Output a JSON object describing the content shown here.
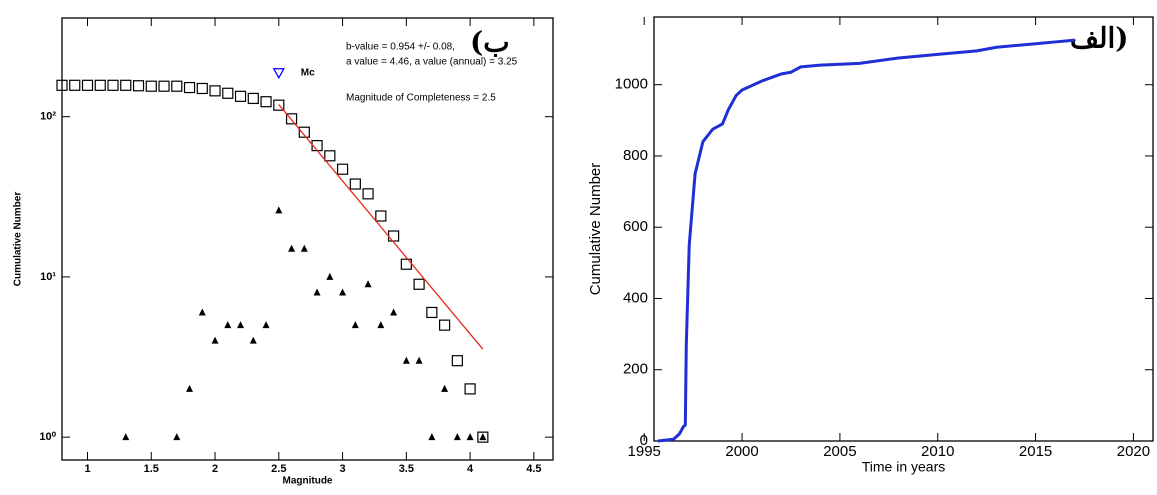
{
  "chart_data": [
    {
      "type": "scatter",
      "yscale": "log",
      "xlabel": "Magnitude",
      "ylabel": "Cumulative Number",
      "panel_label": "(ب",
      "annotations": [
        "b-value = 0.954 +/- 0.08,",
        "a value = 4.46, a value (annual) = 3.25",
        "Magnitude of Completeness = 2.5"
      ],
      "mc_marker": {
        "label": "Mc",
        "x": 2.5,
        "y": 188,
        "color": "#0000ff"
      },
      "xlim": [
        0.8,
        4.65
      ],
      "ylim": [
        0.72,
        413
      ],
      "xticks": [
        1,
        1.5,
        2,
        2.5,
        3,
        3.5,
        4,
        4.5
      ],
      "yticks": [
        {
          "value": 1,
          "label": "10⁰"
        },
        {
          "value": 10,
          "label": "10¹"
        },
        {
          "value": 100,
          "label": "10²"
        }
      ],
      "series": [
        {
          "marker": "square",
          "color": "#000000",
          "x": [
            0.8,
            0.9,
            1.0,
            1.1,
            1.2,
            1.3,
            1.4,
            1.5,
            1.6,
            1.7,
            1.8,
            1.9,
            2.0,
            2.1,
            2.2,
            2.3,
            2.4,
            2.5,
            2.6,
            2.7,
            2.8,
            2.9,
            3.0,
            3.1,
            3.2,
            3.3,
            3.4,
            3.5,
            3.6,
            3.7,
            3.8,
            3.9,
            4.0,
            4.1
          ],
          "values": [
            157,
            157,
            157,
            157,
            157,
            157,
            156,
            155,
            155,
            155,
            152,
            150,
            145,
            140,
            134,
            130,
            124,
            118,
            97,
            80,
            66,
            57,
            47,
            38,
            33,
            24,
            18,
            12,
            9,
            6,
            5,
            3,
            2,
            1
          ]
        },
        {
          "marker": "triangle",
          "color": "#000000",
          "x": [
            1.3,
            1.7,
            1.8,
            1.9,
            2.0,
            2.1,
            2.2,
            2.3,
            2.4,
            2.5,
            2.6,
            2.7,
            2.8,
            2.9,
            3.0,
            3.1,
            3.2,
            3.3,
            3.4,
            3.5,
            3.6,
            3.7,
            3.8,
            3.9,
            4.0,
            4.1
          ],
          "values": [
            1,
            1,
            2,
            6,
            4,
            5,
            5,
            4,
            5,
            26,
            15,
            15,
            8,
            10,
            8,
            5,
            9,
            5,
            6,
            3,
            3,
            1,
            2,
            1,
            1,
            1
          ]
        },
        {
          "marker": "line",
          "color": "#e8281e",
          "x": [
            2.5,
            4.1
          ],
          "values": [
            119,
            3.54
          ]
        }
      ]
    },
    {
      "type": "line",
      "xlabel": "Time in years",
      "ylabel": "Cumulative Number",
      "panel_label": "الف)",
      "xlim": [
        1995.5,
        2021
      ],
      "ylim": [
        0,
        1190
      ],
      "xticks": [
        1995,
        2000,
        2005,
        2010,
        2015,
        2020
      ],
      "yticks": [
        0,
        200,
        400,
        600,
        800,
        1000
      ],
      "series": [
        {
          "color": "#1f2fd6",
          "x": [
            1995.7,
            1996.5,
            1996.8,
            1997.0,
            1997.1,
            1997.15,
            1997.3,
            1997.6,
            1998,
            1998.5,
            1999,
            1999.3,
            1999.7,
            2000,
            2001,
            2002,
            2002.5,
            2003,
            2004,
            2006,
            2008,
            2010,
            2012,
            2013,
            2015,
            2016,
            2017
          ],
          "values": [
            0,
            5,
            20,
            40,
            45,
            270,
            550,
            750,
            840,
            875,
            890,
            930,
            970,
            985,
            1010,
            1030,
            1035,
            1050,
            1055,
            1060,
            1075,
            1085,
            1095,
            1105,
            1115,
            1120,
            1125
          ]
        }
      ]
    }
  ]
}
